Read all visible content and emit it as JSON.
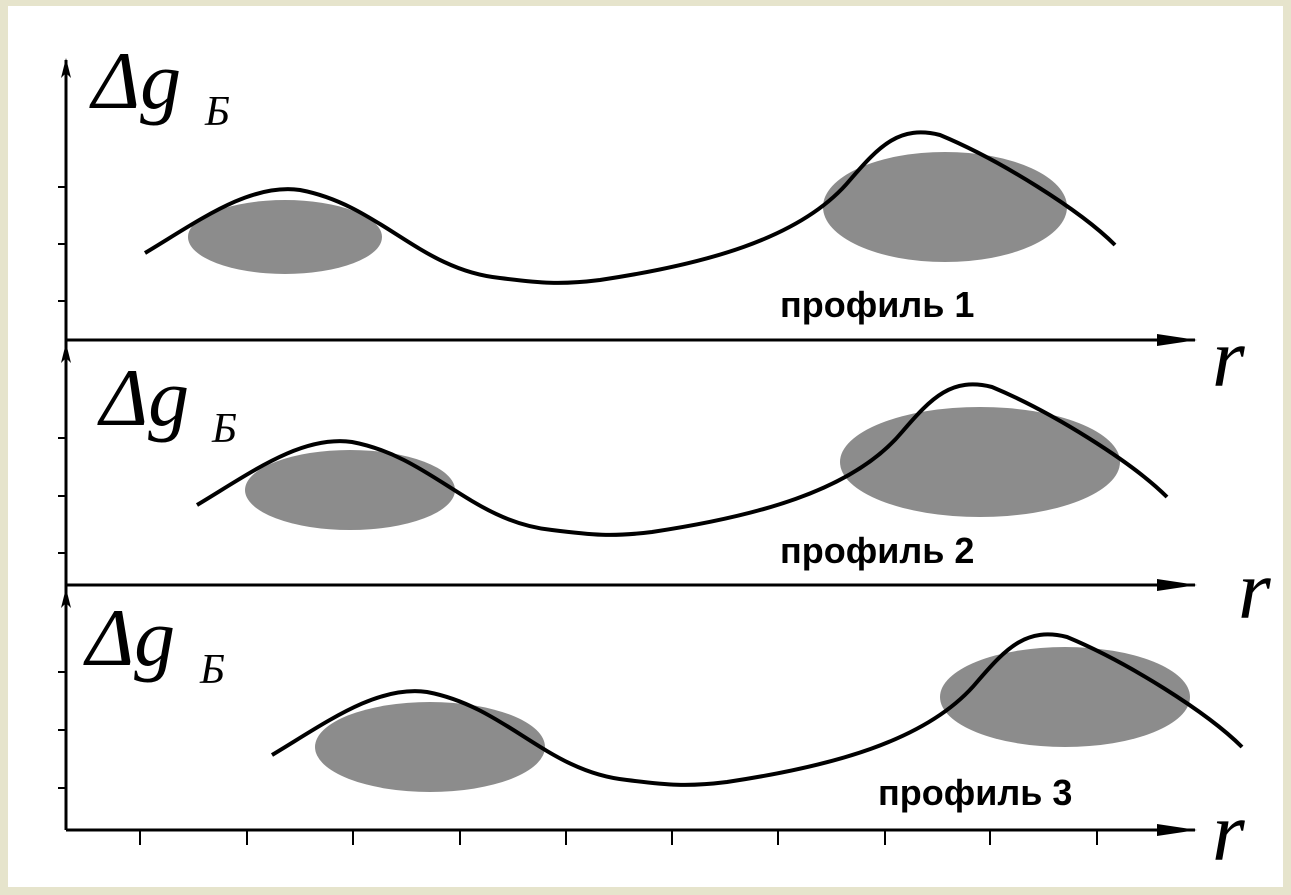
{
  "panels": [
    {
      "y_label": "Δg",
      "y_sub": "Б",
      "x_label": "r",
      "label": "профиль 1"
    },
    {
      "y_label": "Δg",
      "y_sub": "Б",
      "x_label": "r",
      "label": "профиль 2"
    },
    {
      "y_label": "Δg",
      "y_sub": "Б",
      "x_label": "r",
      "label": "профиль 3"
    }
  ]
}
